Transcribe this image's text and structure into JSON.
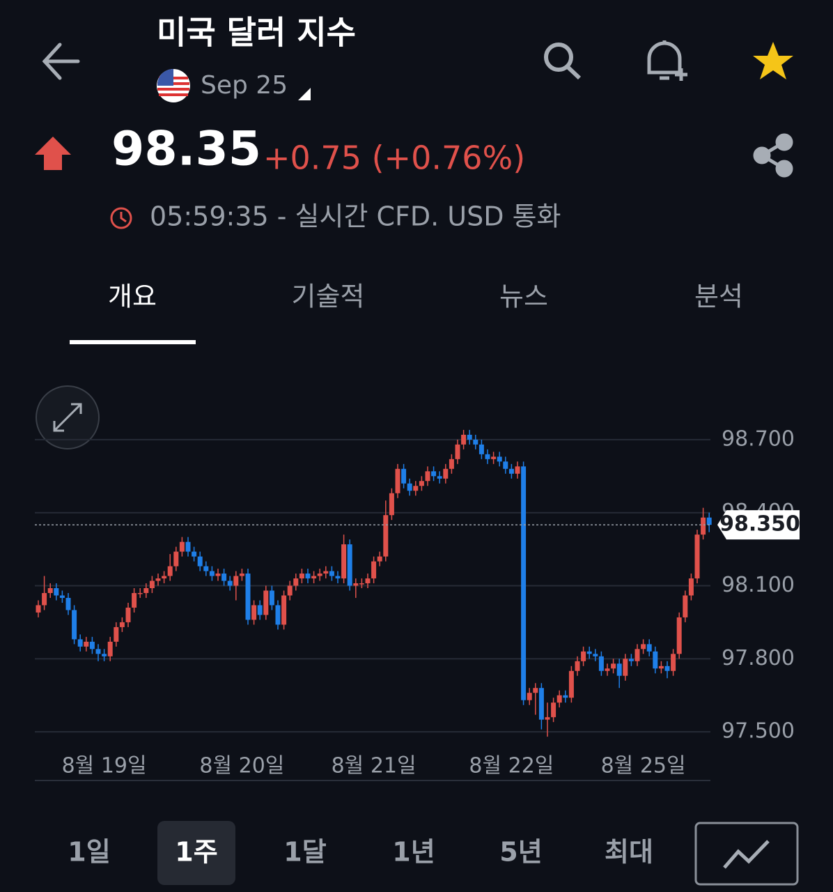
{
  "header": {
    "title": "미국 달러 지수",
    "contract": "Sep 25"
  },
  "quote": {
    "price": "98.35",
    "change": "+0.75 (+0.76%)",
    "time": "05:59:35 - 실시간 CFD. USD 통화"
  },
  "tabs": [
    "개요",
    "기술적",
    "뉴스",
    "분석"
  ],
  "ranges": [
    "1일",
    "1주",
    "1달",
    "1년",
    "5년",
    "최대"
  ],
  "chart_data": {
    "type": "candlestick",
    "up_color": "#e0514b",
    "down_color": "#1f7fe8",
    "grid": true,
    "ylim": [
      97.3,
      98.9
    ],
    "yticks": [
      {
        "value": 97.5,
        "label": "97.500"
      },
      {
        "value": 97.8,
        "label": "97.800"
      },
      {
        "value": 98.1,
        "label": "98.100"
      },
      {
        "value": 98.4,
        "label": "98.400"
      },
      {
        "value": 98.7,
        "label": "98.700"
      }
    ],
    "last_price": {
      "value": 98.35,
      "label": "98.350"
    },
    "categories": [
      null,
      null,
      null,
      null,
      null,
      null,
      null,
      null,
      null,
      null,
      null,
      "8월 19일",
      null,
      null,
      null,
      null,
      null,
      null,
      null,
      null,
      null,
      null,
      null,
      null,
      null,
      null,
      null,
      null,
      null,
      null,
      null,
      null,
      null,
      null,
      "8월 20일",
      null,
      null,
      null,
      null,
      null,
      null,
      null,
      null,
      null,
      null,
      null,
      null,
      null,
      null,
      null,
      null,
      null,
      null,
      null,
      null,
      null,
      "8월 21일",
      null,
      null,
      null,
      null,
      null,
      null,
      null,
      null,
      null,
      null,
      null,
      null,
      null,
      null,
      null,
      null,
      null,
      null,
      null,
      null,
      null,
      null,
      "8월 22일",
      null,
      null,
      null,
      null,
      null,
      null,
      null,
      null,
      null,
      null,
      null,
      null,
      null,
      null,
      null,
      null,
      null,
      null,
      null,
      null,
      null,
      "8월 25일",
      null,
      null,
      null,
      null,
      null,
      null,
      null,
      null,
      null,
      null,
      null
    ],
    "open": [
      97.99,
      98.02,
      98.07,
      98.09,
      98.06,
      98.05,
      98.0,
      97.88,
      97.85,
      97.87,
      97.84,
      97.82,
      97.81,
      97.87,
      97.93,
      97.95,
      98.01,
      98.07,
      98.07,
      98.09,
      98.12,
      98.13,
      98.14,
      98.18,
      98.24,
      98.28,
      98.24,
      98.22,
      98.18,
      98.16,
      98.14,
      98.15,
      98.12,
      98.1,
      98.14,
      98.15,
      97.96,
      98.02,
      97.98,
      98.08,
      98.02,
      97.94,
      98.06,
      98.1,
      98.13,
      98.15,
      98.13,
      98.14,
      98.15,
      98.16,
      98.14,
      98.13,
      98.27,
      98.1,
      98.11,
      98.11,
      98.13,
      98.2,
      98.22,
      98.39,
      98.48,
      98.58,
      98.52,
      98.49,
      98.51,
      98.53,
      98.57,
      98.55,
      98.54,
      98.58,
      98.62,
      98.68,
      98.72,
      98.7,
      98.68,
      98.64,
      98.62,
      98.63,
      98.61,
      98.58,
      98.56,
      98.59,
      97.63,
      97.66,
      97.68,
      97.55,
      97.56,
      97.62,
      97.65,
      97.64,
      97.75,
      97.79,
      97.83,
      97.82,
      97.81,
      97.75,
      97.76,
      97.78,
      97.73,
      97.8,
      97.79,
      97.84,
      97.86,
      97.83,
      97.76,
      97.77,
      97.75,
      97.82,
      97.97,
      98.06,
      98.13,
      98.31,
      98.38
    ],
    "high": [
      98.04,
      98.14,
      98.11,
      98.11,
      98.08,
      98.07,
      98.02,
      97.9,
      97.89,
      97.89,
      97.86,
      97.84,
      97.89,
      97.95,
      97.97,
      98.03,
      98.09,
      98.09,
      98.11,
      98.14,
      98.15,
      98.16,
      98.23,
      98.26,
      98.3,
      98.3,
      98.26,
      98.24,
      98.2,
      98.18,
      98.17,
      98.17,
      98.14,
      98.16,
      98.17,
      98.17,
      98.04,
      98.04,
      98.1,
      98.1,
      98.04,
      98.08,
      98.12,
      98.15,
      98.17,
      98.17,
      98.16,
      98.17,
      98.18,
      98.18,
      98.16,
      98.31,
      98.29,
      98.13,
      98.13,
      98.15,
      98.22,
      98.24,
      98.45,
      98.5,
      98.6,
      98.6,
      98.54,
      98.53,
      98.55,
      98.59,
      98.59,
      98.57,
      98.6,
      98.64,
      98.7,
      98.74,
      98.74,
      98.72,
      98.7,
      98.66,
      98.65,
      98.65,
      98.63,
      98.6,
      98.61,
      98.61,
      97.68,
      97.7,
      97.7,
      97.62,
      97.64,
      97.67,
      97.67,
      97.77,
      97.81,
      97.85,
      97.85,
      97.84,
      97.83,
      97.78,
      97.8,
      97.8,
      97.82,
      97.82,
      97.86,
      97.88,
      97.88,
      97.85,
      97.79,
      97.79,
      97.84,
      97.99,
      98.08,
      98.15,
      98.33,
      98.42,
      98.4
    ],
    "low": [
      97.97,
      98.0,
      98.05,
      98.04,
      98.03,
      97.98,
      97.86,
      97.83,
      97.83,
      97.82,
      97.79,
      97.79,
      97.79,
      97.85,
      97.91,
      97.93,
      97.99,
      98.05,
      98.05,
      98.07,
      98.1,
      98.11,
      98.12,
      98.16,
      98.22,
      98.22,
      98.2,
      98.16,
      98.14,
      98.12,
      98.12,
      98.1,
      98.08,
      98.04,
      98.12,
      97.94,
      97.94,
      97.96,
      97.96,
      98.0,
      97.92,
      97.92,
      98.04,
      98.08,
      98.11,
      98.11,
      98.11,
      98.12,
      98.13,
      98.12,
      98.11,
      98.11,
      98.08,
      98.05,
      98.09,
      98.09,
      98.11,
      98.18,
      98.2,
      98.37,
      98.46,
      98.5,
      98.47,
      98.47,
      98.49,
      98.51,
      98.53,
      98.52,
      98.52,
      98.56,
      98.6,
      98.66,
      98.68,
      98.66,
      98.62,
      98.6,
      98.6,
      98.59,
      98.56,
      98.54,
      98.54,
      97.61,
      97.61,
      97.57,
      97.51,
      97.48,
      97.54,
      97.6,
      97.62,
      97.62,
      97.73,
      97.77,
      97.8,
      97.79,
      97.73,
      97.73,
      97.74,
      97.68,
      97.71,
      97.77,
      97.77,
      97.82,
      97.81,
      97.74,
      97.74,
      97.72,
      97.73,
      97.8,
      97.95,
      98.04,
      98.11,
      98.29,
      98.32
    ],
    "close": [
      98.02,
      98.07,
      98.09,
      98.06,
      98.05,
      98.0,
      97.88,
      97.85,
      97.87,
      97.84,
      97.82,
      97.81,
      97.87,
      97.93,
      97.95,
      98.01,
      98.07,
      98.07,
      98.09,
      98.12,
      98.13,
      98.14,
      98.18,
      98.24,
      98.28,
      98.24,
      98.22,
      98.18,
      98.16,
      98.14,
      98.15,
      98.12,
      98.1,
      98.14,
      98.15,
      97.96,
      98.02,
      97.98,
      98.08,
      98.02,
      97.94,
      98.06,
      98.1,
      98.13,
      98.15,
      98.13,
      98.14,
      98.15,
      98.16,
      98.14,
      98.13,
      98.27,
      98.1,
      98.11,
      98.11,
      98.13,
      98.2,
      98.22,
      98.39,
      98.48,
      98.58,
      98.52,
      98.49,
      98.51,
      98.53,
      98.57,
      98.55,
      98.54,
      98.58,
      98.62,
      98.68,
      98.72,
      98.7,
      98.68,
      98.64,
      98.62,
      98.63,
      98.61,
      98.58,
      98.56,
      98.59,
      97.63,
      97.66,
      97.68,
      97.55,
      97.56,
      97.62,
      97.65,
      97.64,
      97.75,
      97.79,
      97.83,
      97.82,
      97.81,
      97.75,
      97.76,
      97.78,
      97.73,
      97.8,
      97.79,
      97.84,
      97.86,
      97.83,
      97.76,
      97.77,
      97.75,
      97.82,
      97.97,
      98.06,
      98.13,
      98.31,
      98.38,
      98.35
    ]
  }
}
